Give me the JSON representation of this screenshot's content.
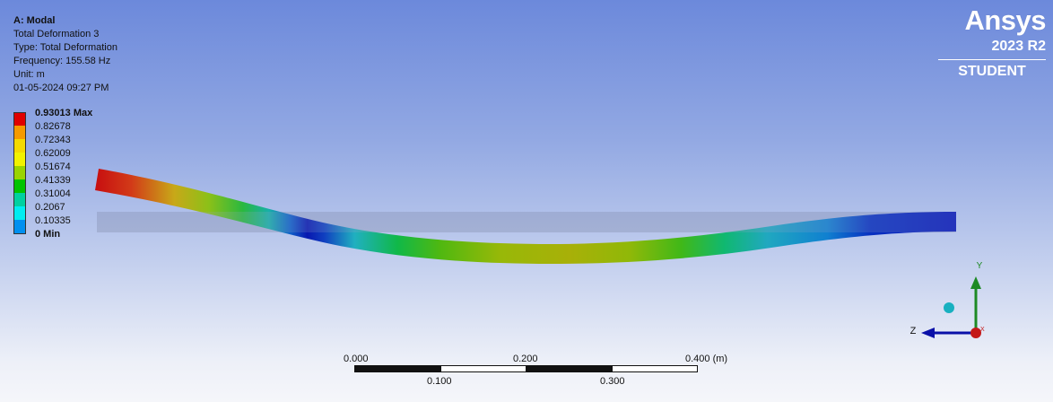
{
  "result_info": {
    "analysis": "A: Modal",
    "name": "Total Deformation 3",
    "type": "Type: Total Deformation",
    "frequency": "Frequency: 155.58 Hz",
    "unit": "Unit: m",
    "timestamp": "01-05-2024 09:27 PM"
  },
  "legend": {
    "entries": [
      {
        "label": "0.93013 Max",
        "color": "#e00000",
        "bold": true
      },
      {
        "label": "0.82678",
        "color": "#f59a00",
        "bold": false
      },
      {
        "label": "0.72343",
        "color": "#f4da00",
        "bold": false
      },
      {
        "label": "0.62009",
        "color": "#f2f200",
        "bold": false
      },
      {
        "label": "0.51674",
        "color": "#9ad400",
        "bold": false
      },
      {
        "label": "0.41339",
        "color": "#00c400",
        "bold": false
      },
      {
        "label": "0.31004",
        "color": "#00d0a0",
        "bold": false
      },
      {
        "label": "0.2067",
        "color": "#00ecf0",
        "bold": false
      },
      {
        "label": "0.10335",
        "color": "#0090f0",
        "bold": false
      },
      {
        "label": "0 Min",
        "color": "#0010e6",
        "bold": true
      }
    ]
  },
  "logo": {
    "brand": "Ansys",
    "version": "2023 R2",
    "edition": "STUDENT"
  },
  "scale": {
    "top_labels": [
      "0.000",
      "0.200",
      "0.400 (m)"
    ],
    "bottom_labels": [
      "0.100",
      "0.300"
    ]
  },
  "triad": {
    "y_label": "Y",
    "z_label": "Z",
    "x_label": "X"
  },
  "colors": {
    "beam_undeformed": "#8a96b8",
    "triad_y": "#1d8a24",
    "triad_z": "#0a10a8",
    "triad_origin": "#c41818",
    "iso_ball": "#18b0c0"
  }
}
